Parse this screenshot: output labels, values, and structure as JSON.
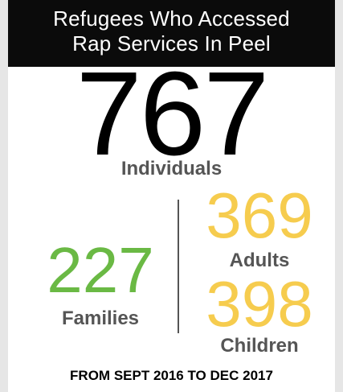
{
  "header": {
    "line1": "Refugees Who Accessed",
    "line2": "Rap Services In Peel"
  },
  "individuals": {
    "value": "767",
    "label": "Individuals"
  },
  "families": {
    "value": "227",
    "label": "Families"
  },
  "adults": {
    "value": "369",
    "label": "Adults"
  },
  "children": {
    "value": "398",
    "label": "Children"
  },
  "footer": "FROM SEPT 2016 TO DEC 2017",
  "colors": {
    "header_background": "#0b0b0b",
    "families_green": "#6ab944",
    "adults_children_yellow": "#f6cc4e",
    "label_gray": "#555555"
  }
}
